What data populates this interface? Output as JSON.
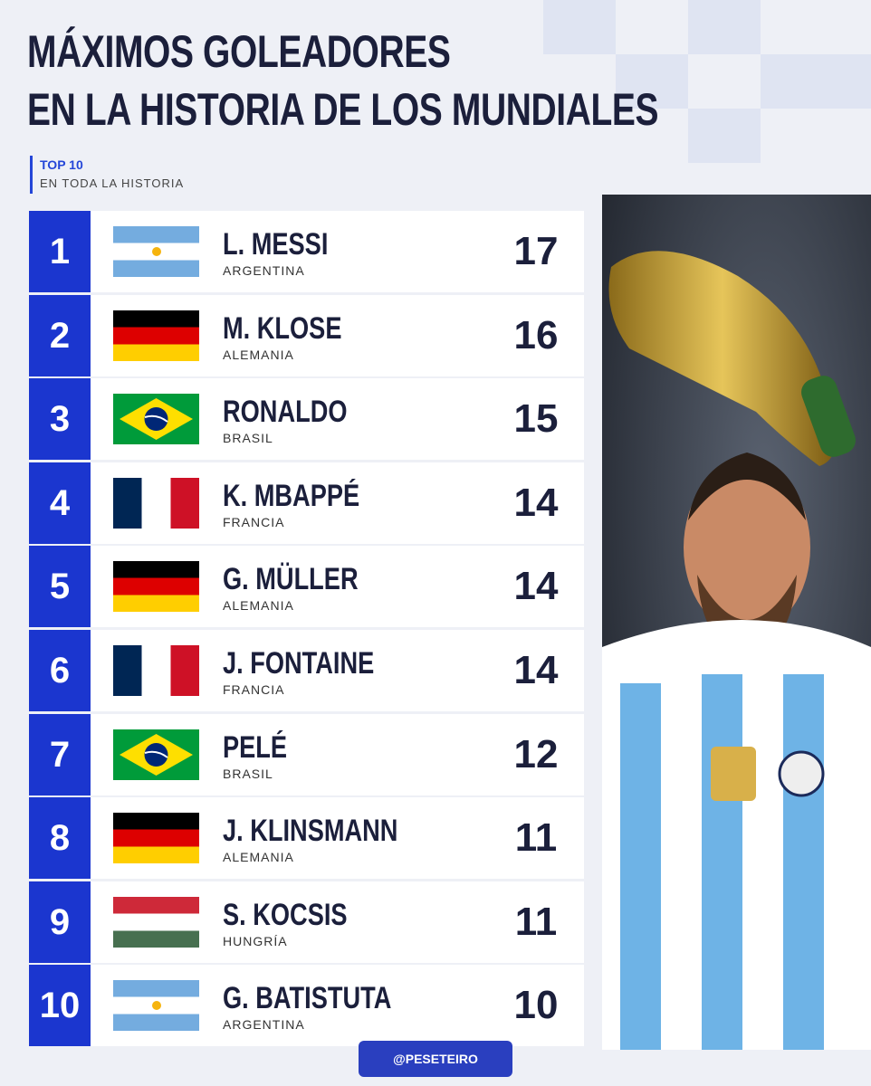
{
  "header": {
    "title_line1": "MÁXIMOS GOLEADORES",
    "title_line2": "EN LA HISTORIA DE LOS MUNDIALES",
    "subtitle": "TOP 10",
    "caption": "EN TODA LA HISTORIA"
  },
  "rows": [
    {
      "rank": 1,
      "player": "L. MESSI",
      "country": "ARGENTINA",
      "goals": 17
    },
    {
      "rank": 2,
      "player": "M. KLOSE",
      "country": "ALEMANIA",
      "goals": 16
    },
    {
      "rank": 3,
      "player": "RONALDO",
      "country": "BRASIL",
      "goals": 15
    },
    {
      "rank": 4,
      "player": "K. MBAPPÉ",
      "country": "FRANCIA",
      "goals": 14
    },
    {
      "rank": 5,
      "player": "G. MÜLLER",
      "country": "ALEMANIA",
      "goals": 14
    },
    {
      "rank": 6,
      "player": "J. FONTAINE",
      "country": "FRANCIA",
      "goals": 14
    },
    {
      "rank": 7,
      "player": "PELÉ",
      "country": "BRASIL",
      "goals": 12
    },
    {
      "rank": 8,
      "player": "J. KLINSMANN",
      "country": "ALEMANIA",
      "goals": 11
    },
    {
      "rank": 9,
      "player": "S. KOCSIS",
      "country": "HUNGRÍA",
      "goals": 11
    },
    {
      "rank": 10,
      "player": "G. BATISTUTA",
      "country": "ARGENTINA",
      "goals": 10
    }
  ],
  "footer": {
    "credit": "@PESETEIRO"
  }
}
